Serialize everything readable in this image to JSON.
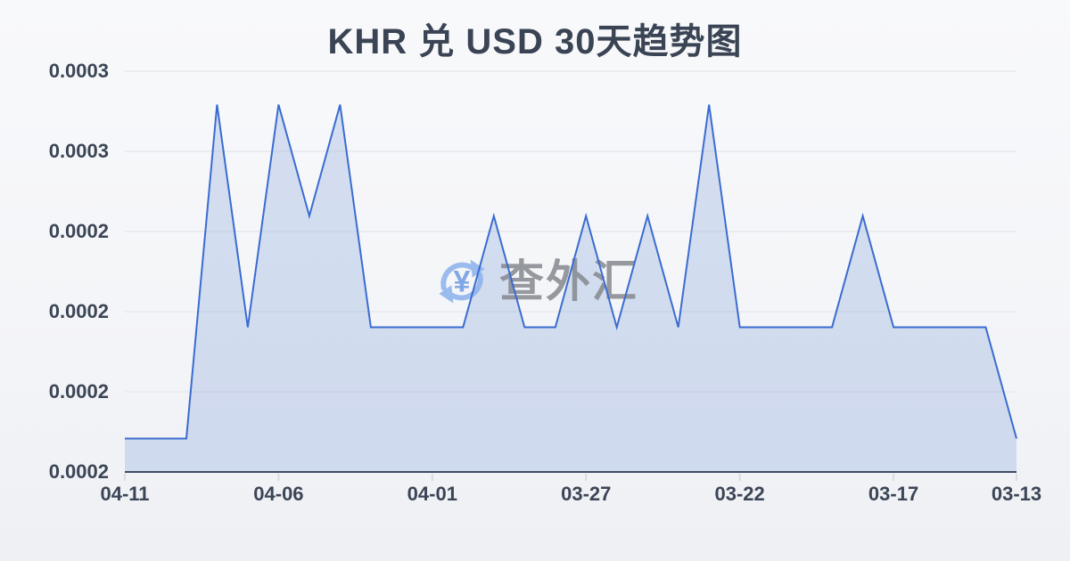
{
  "watermark": {
    "icon": "currency-exchange-icon",
    "icon_symbol": "¥",
    "text": "查外汇"
  },
  "chart_data": {
    "type": "area",
    "title": "KHR 兑 USD 30天趋势图",
    "xlabel": "",
    "ylabel": "",
    "x": [
      "04-11",
      "04-10",
      "04-09",
      "04-08",
      "04-07",
      "04-06",
      "04-05",
      "04-04",
      "04-03",
      "04-02",
      "04-01",
      "03-31",
      "03-30",
      "03-29",
      "03-28",
      "03-27",
      "03-26",
      "03-25",
      "03-24",
      "03-23",
      "03-22",
      "03-21",
      "03-20",
      "03-19",
      "03-18",
      "03-17",
      "03-16",
      "03-15",
      "03-14",
      "03-13"
    ],
    "values": [
      0.000244,
      0.000244,
      0.000244,
      0.000253,
      0.000247,
      0.000253,
      0.00025,
      0.000253,
      0.000247,
      0.000247,
      0.000247,
      0.000247,
      0.00025,
      0.000247,
      0.000247,
      0.00025,
      0.000247,
      0.00025,
      0.000247,
      0.000253,
      0.000247,
      0.000247,
      0.000247,
      0.000247,
      0.00025,
      0.000247,
      0.000247,
      0.000247,
      0.000247,
      0.000244
    ],
    "x_tick_indices": [
      0,
      5,
      10,
      15,
      20,
      25,
      29
    ],
    "x_tick_labels": [
      "04-11",
      "04-06",
      "04-01",
      "03-27",
      "03-22",
      "03-17",
      "03-13"
    ],
    "y_tick_labels": [
      "0.0003",
      "0.0003",
      "0.0002",
      "0.0002",
      "0.0002",
      "0.0002"
    ],
    "ylim": [
      0.0002431,
      0.0002539
    ],
    "grid": "horizontal-only",
    "legend": "none",
    "colors": {
      "line": "#3a6cd0",
      "fill": "rgba(93,130,209,0.22)",
      "axis_line": "#3d4c66",
      "gridline": "#e7e9ee",
      "tick": "#d9dce1",
      "text": "#3b4556",
      "title_text": "#3a4454",
      "watermark_text": "#85888e",
      "watermark_icon": "#8ab1ec",
      "watermark_symbol": "#6d9ae4",
      "background_top": "#f8f9fb",
      "background_bottom": "#eef0f4"
    }
  }
}
